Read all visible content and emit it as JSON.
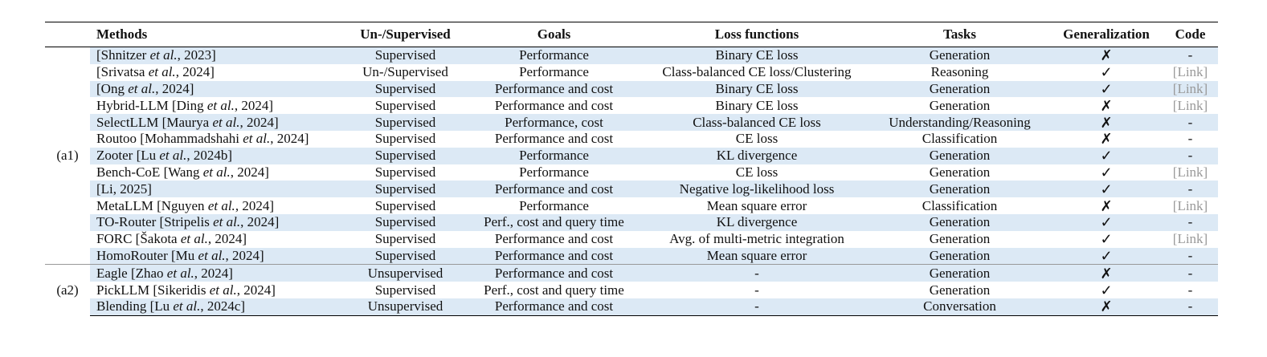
{
  "headers": [
    "",
    "Methods",
    "Un-/Supervised",
    "Goals",
    "Loss functions",
    "Tasks",
    "Generalization",
    "Code"
  ],
  "groups": [
    {
      "label": "(a1)",
      "rows": [
        {
          "name": "[Shnitzer ",
          "etal": "et al.",
          "rest": ", 2023]",
          "sup": "Supervised",
          "goal": "Performance",
          "loss": "Binary CE loss",
          "task": "Generation",
          "gen": "✗",
          "code": "-"
        },
        {
          "name": "[Srivatsa ",
          "etal": "et al.",
          "rest": ", 2024]",
          "sup": "Un-/Supervised",
          "goal": "Performance",
          "loss": "Class-balanced CE loss/Clustering",
          "task": "Reasoning",
          "gen": "✓",
          "code": "[Link]"
        },
        {
          "name": "[Ong ",
          "etal": "et al.",
          "rest": ", 2024]",
          "sup": "Supervised",
          "goal": "Performance and cost",
          "loss": "Binary CE loss",
          "task": "Generation",
          "gen": "✓",
          "code": "[Link]"
        },
        {
          "name": "Hybrid-LLM [Ding ",
          "etal": "et al.",
          "rest": ", 2024]",
          "sup": "Supervised",
          "goal": "Performance and cost",
          "loss": "Binary CE loss",
          "task": "Generation",
          "gen": "✗",
          "code": "[Link]"
        },
        {
          "name": "SelectLLM [Maurya ",
          "etal": "et al.",
          "rest": ", 2024]",
          "sup": "Supervised",
          "goal": "Performance, cost",
          "loss": "Class-balanced CE loss",
          "task": "Understanding/Reasoning",
          "gen": "✗",
          "code": "-"
        },
        {
          "name": "Routoo [Mohammadshahi ",
          "etal": "et al.",
          "rest": ", 2024]",
          "sup": "Supervised",
          "goal": "Performance and cost",
          "loss": "CE loss",
          "task": "Classification",
          "gen": "✗",
          "code": "-"
        },
        {
          "name": "Zooter [Lu ",
          "etal": "et al.",
          "rest": ", 2024b]",
          "sup": "Supervised",
          "goal": "Performance",
          "loss": "KL divergence",
          "task": "Generation",
          "gen": "✓",
          "code": "-"
        },
        {
          "name": "Bench-CoE [Wang ",
          "etal": "et al.",
          "rest": ", 2024]",
          "sup": "Supervised",
          "goal": "Performance",
          "loss": "CE loss",
          "task": "Generation",
          "gen": "✓",
          "code": "[Link]"
        },
        {
          "name": "[Li, 2025]",
          "etal": "",
          "rest": "",
          "sup": "Supervised",
          "goal": "Performance and cost",
          "loss": "Negative log-likelihood loss",
          "task": "Generation",
          "gen": "✓",
          "code": "-"
        },
        {
          "name": "MetaLLM [Nguyen ",
          "etal": "et al.",
          "rest": ", 2024]",
          "sup": "Supervised",
          "goal": "Performance",
          "loss": "Mean square error",
          "task": "Classification",
          "gen": "✗",
          "code": "[Link]"
        },
        {
          "name": "TO-Router [Stripelis ",
          "etal": "et al.",
          "rest": ", 2024]",
          "sup": "Supervised",
          "goal": "Perf., cost and query time",
          "loss": "KL divergence",
          "task": "Generation",
          "gen": "✓",
          "code": "-"
        },
        {
          "name": "FORC [Šakota ",
          "etal": "et al.",
          "rest": ", 2024]",
          "sup": "Supervised",
          "goal": "Performance and cost",
          "loss": "Avg. of multi-metric integration",
          "task": "Generation",
          "gen": "✓",
          "code": "[Link]"
        },
        {
          "name": "HomoRouter [Mu ",
          "etal": "et al.",
          "rest": ", 2024]",
          "sup": "Supervised",
          "goal": "Performance and cost",
          "loss": "Mean square error",
          "task": "Generation",
          "gen": "✓",
          "code": "-"
        }
      ]
    },
    {
      "label": "(a2)",
      "rows": [
        {
          "name": "Eagle [Zhao ",
          "etal": "et al.",
          "rest": ", 2024]",
          "sup": "Unsupervised",
          "goal": "Performance and cost",
          "loss": "-",
          "task": "Generation",
          "gen": "✗",
          "code": "-"
        },
        {
          "name": "PickLLM [Sikeridis ",
          "etal": "et al.",
          "rest": ", 2024]",
          "sup": "Supervised",
          "goal": "Perf., cost and query time",
          "loss": "-",
          "task": "Generation",
          "gen": "✓",
          "code": "-"
        },
        {
          "name": "Blending [Lu ",
          "etal": "et al.",
          "rest": ", 2024c]",
          "sup": "Unsupervised",
          "goal": "Performance and cost",
          "loss": "-",
          "task": "Conversation",
          "gen": "✗",
          "code": "-"
        }
      ]
    }
  ]
}
